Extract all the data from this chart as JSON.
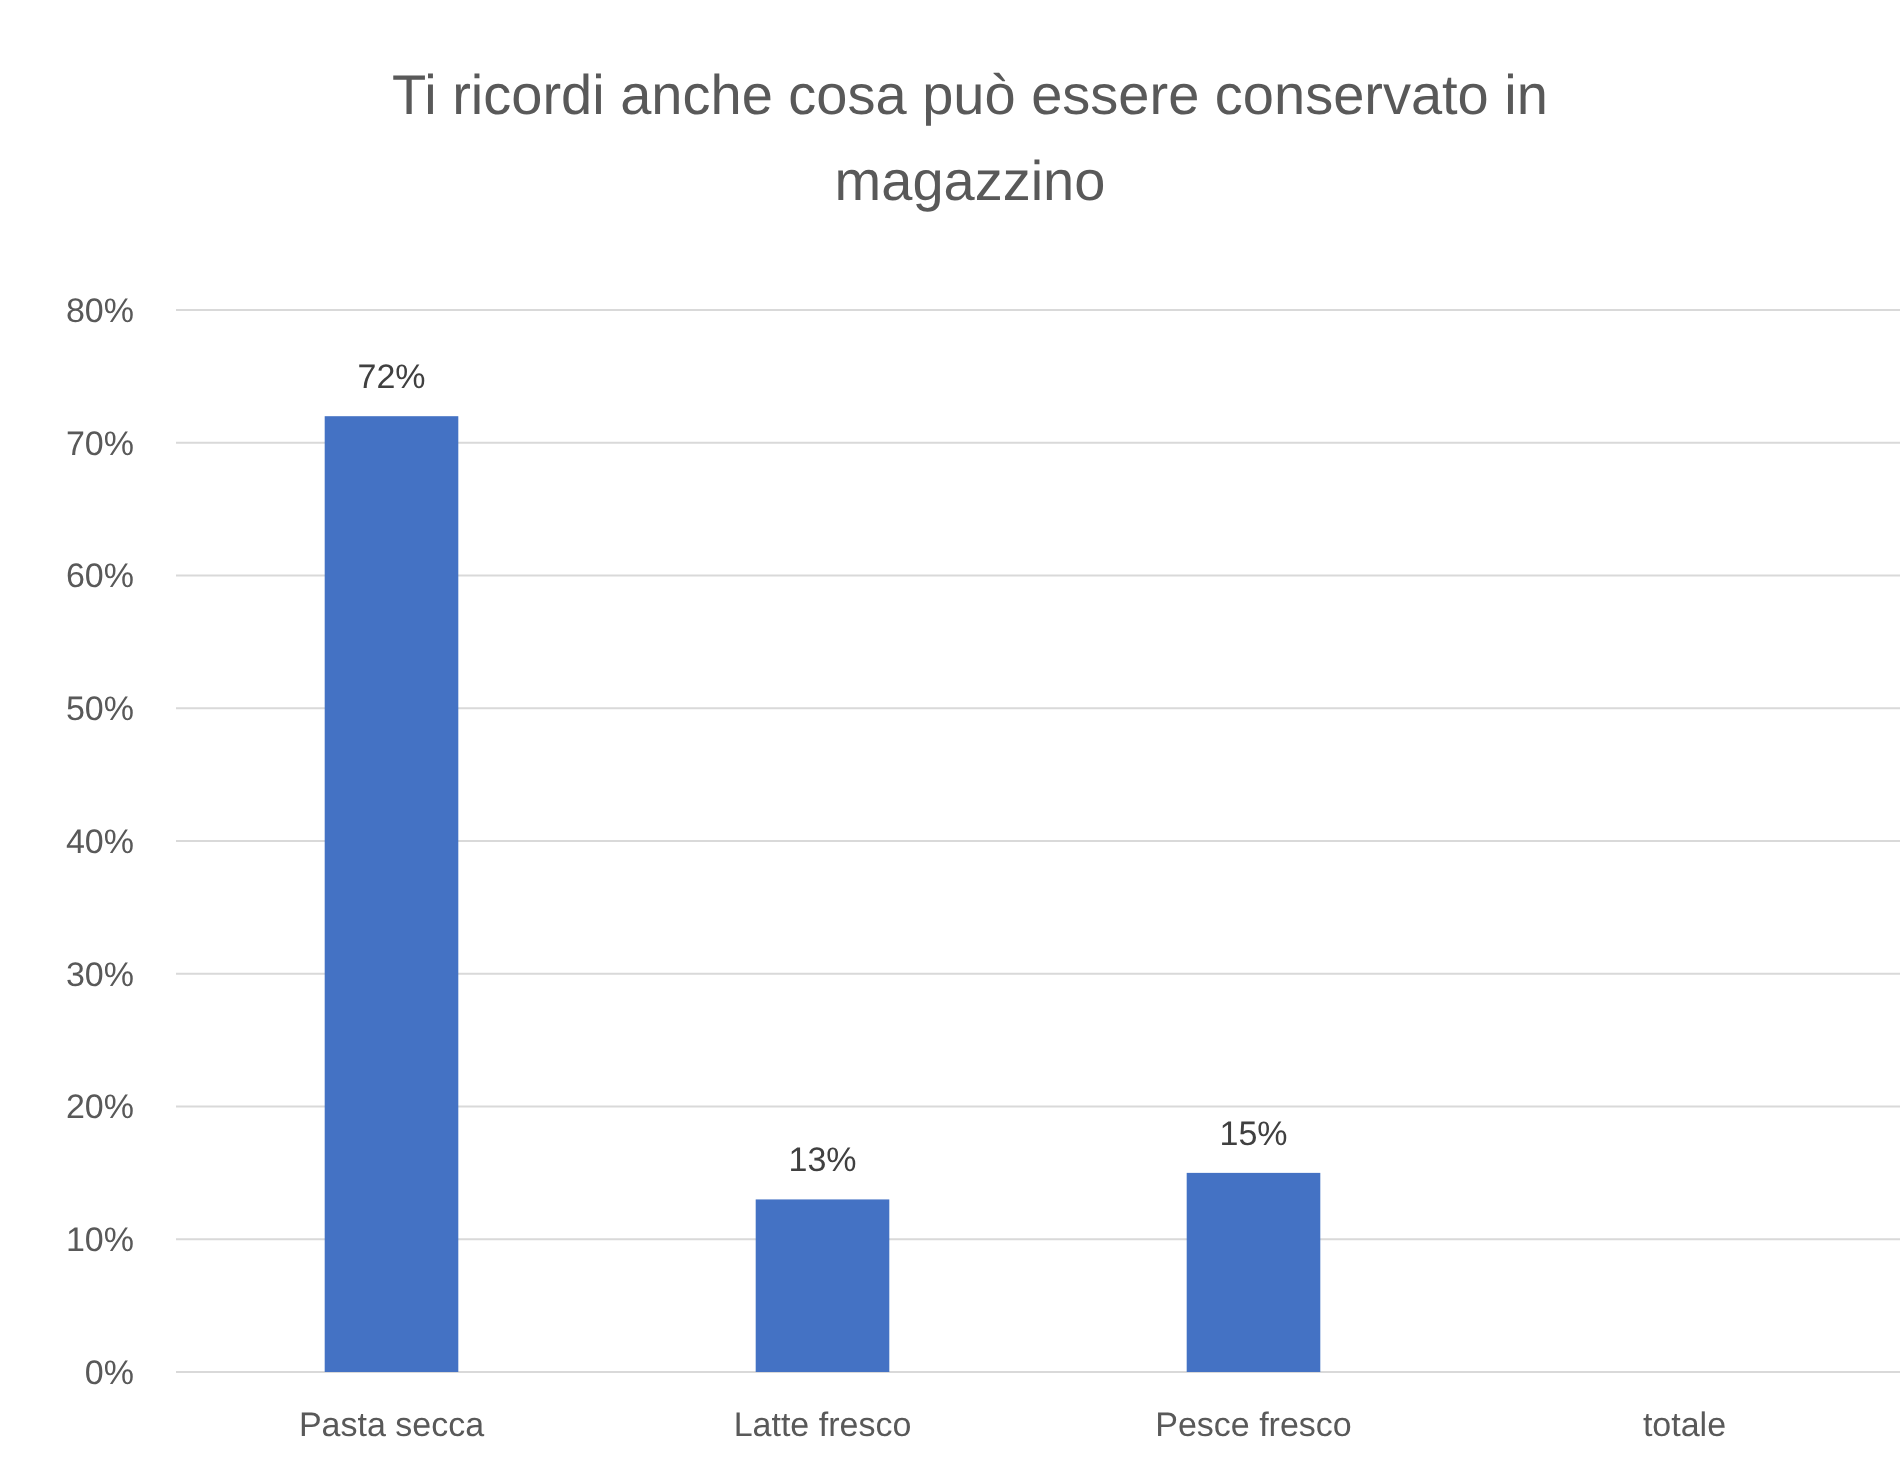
{
  "chart_data": {
    "type": "bar",
    "title": "Ti ricordi anche cosa può essere conservato in magazzino",
    "categories": [
      "Pasta secca",
      "Latte fresco",
      "Pesce fresco",
      "totale"
    ],
    "values": [
      72,
      13,
      15,
      null
    ],
    "value_labels": [
      "72%",
      "13%",
      "15%",
      null
    ],
    "color": "#4472c4",
    "ylim": [
      0,
      80
    ],
    "yticks": [
      {
        "value": 0,
        "label": "0%"
      },
      {
        "value": 10,
        "label": "10%"
      },
      {
        "value": 20,
        "label": "20%"
      },
      {
        "value": 30,
        "label": "30%"
      },
      {
        "value": 40,
        "label": "40%"
      },
      {
        "value": 50,
        "label": "50%"
      },
      {
        "value": 60,
        "label": "60%"
      },
      {
        "value": 70,
        "label": "70%"
      },
      {
        "value": 80,
        "label": "80%"
      }
    ],
    "grid": "y"
  }
}
